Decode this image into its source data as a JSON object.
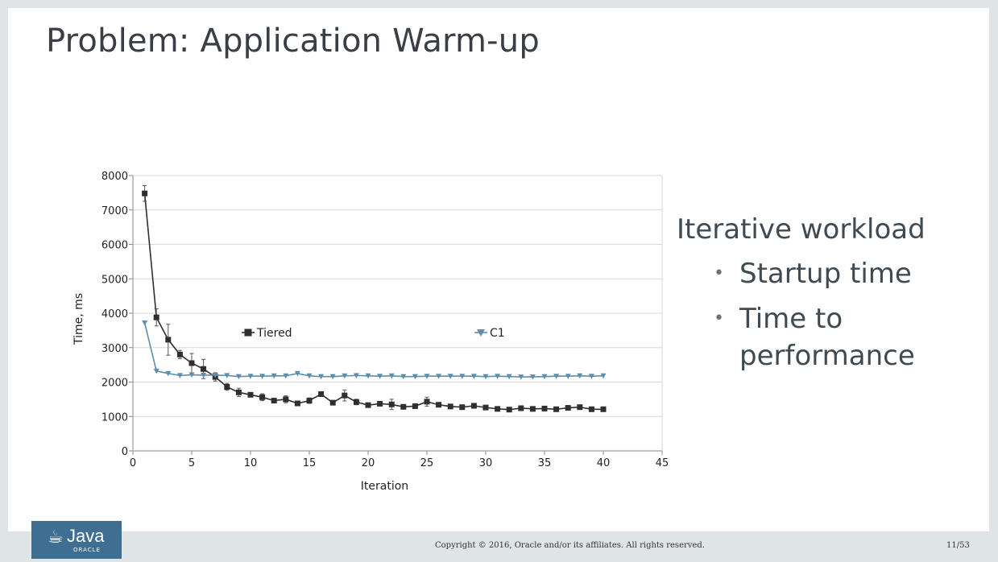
{
  "slide": {
    "title": "Problem: Application Warm-up",
    "bullets": {
      "heading": "Iterative workload",
      "items": [
        "Startup time",
        "Time to performance"
      ]
    }
  },
  "footer": {
    "copyright": "Copyright © 2016, Oracle and/or its affiliates. All rights reserved.",
    "page": "11/53",
    "logo_text": "Java",
    "logo_sub": "ORACLE"
  },
  "colors": {
    "tiered": "#2f2f2f",
    "c1": "#5e8eaa",
    "grid": "#d9d9d9",
    "slide_bg": "#ffffff",
    "frame_bg": "#dfe5e6",
    "logo_bg": "#3e6f93"
  },
  "chart_data": {
    "type": "line",
    "xlabel": "Iteration",
    "ylabel": "Time, ms",
    "xlim": [
      0,
      45
    ],
    "ylim": [
      0,
      8000
    ],
    "xticks": [
      0,
      5,
      10,
      15,
      20,
      25,
      30,
      35,
      40,
      45
    ],
    "yticks": [
      0,
      1000,
      2000,
      3000,
      4000,
      5000,
      6000,
      7000,
      8000
    ],
    "grid": "horizontal",
    "legend": "inline-center",
    "x": [
      1,
      2,
      3,
      4,
      5,
      6,
      7,
      8,
      9,
      10,
      11,
      12,
      13,
      14,
      15,
      16,
      17,
      18,
      19,
      20,
      21,
      22,
      23,
      24,
      25,
      26,
      27,
      28,
      29,
      30,
      31,
      32,
      33,
      34,
      35,
      36,
      37,
      38,
      39,
      40
    ],
    "series": [
      {
        "name": "Tiered",
        "marker": "square",
        "values": [
          7480,
          3880,
          3230,
          2800,
          2550,
          2380,
          2150,
          1860,
          1700,
          1630,
          1560,
          1460,
          1500,
          1380,
          1460,
          1650,
          1400,
          1610,
          1420,
          1330,
          1370,
          1350,
          1280,
          1300,
          1430,
          1340,
          1290,
          1270,
          1310,
          1260,
          1220,
          1200,
          1240,
          1220,
          1230,
          1210,
          1250,
          1270,
          1210,
          1210
        ],
        "errors": [
          230,
          250,
          450,
          120,
          280,
          280,
          120,
          100,
          120,
          60,
          100,
          60,
          100,
          60,
          80,
          60,
          60,
          160,
          80,
          40,
          60,
          150,
          60,
          60,
          130,
          60,
          40,
          40,
          40,
          40,
          30,
          30,
          30,
          30,
          30,
          30,
          30,
          30,
          30,
          30
        ]
      },
      {
        "name": "C1",
        "marker": "triangle-down",
        "values": [
          3720,
          2320,
          2250,
          2190,
          2210,
          2200,
          2200,
          2190,
          2160,
          2170,
          2170,
          2180,
          2180,
          2250,
          2180,
          2160,
          2160,
          2180,
          2190,
          2180,
          2170,
          2180,
          2160,
          2160,
          2170,
          2170,
          2170,
          2170,
          2170,
          2160,
          2170,
          2160,
          2150,
          2150,
          2160,
          2170,
          2170,
          2180,
          2170,
          2180
        ]
      }
    ]
  }
}
